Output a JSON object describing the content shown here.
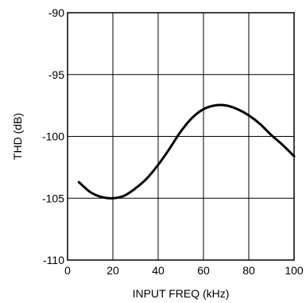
{
  "chart_data": {
    "type": "line",
    "title": "",
    "xlabel": "INPUT FREQ (kHz)",
    "ylabel": "THD (dB)",
    "xlim": [
      0,
      100
    ],
    "ylim": [
      -110,
      -90
    ],
    "xticks": [
      0,
      20,
      40,
      60,
      80,
      100
    ],
    "yticks": [
      -110,
      -105,
      -100,
      -95,
      -90
    ],
    "x_tick_labels": [
      "0",
      "20",
      "40",
      "60",
      "80",
      "100"
    ],
    "y_tick_labels": [
      "-110",
      "-105",
      "-100",
      "-95",
      "-90"
    ],
    "grid": true,
    "series": [
      {
        "color": "#000000",
        "x": [
          5,
          10,
          15,
          20,
          25,
          30,
          35,
          40,
          45,
          50,
          55,
          60,
          65,
          70,
          75,
          80,
          85,
          90,
          95,
          100
        ],
        "y": [
          -103.7,
          -104.5,
          -104.9,
          -105.0,
          -104.8,
          -104.2,
          -103.4,
          -102.3,
          -101.0,
          -99.6,
          -98.5,
          -97.8,
          -97.5,
          -97.5,
          -97.8,
          -98.3,
          -99.0,
          -99.9,
          -100.7,
          -101.6
        ]
      }
    ]
  }
}
